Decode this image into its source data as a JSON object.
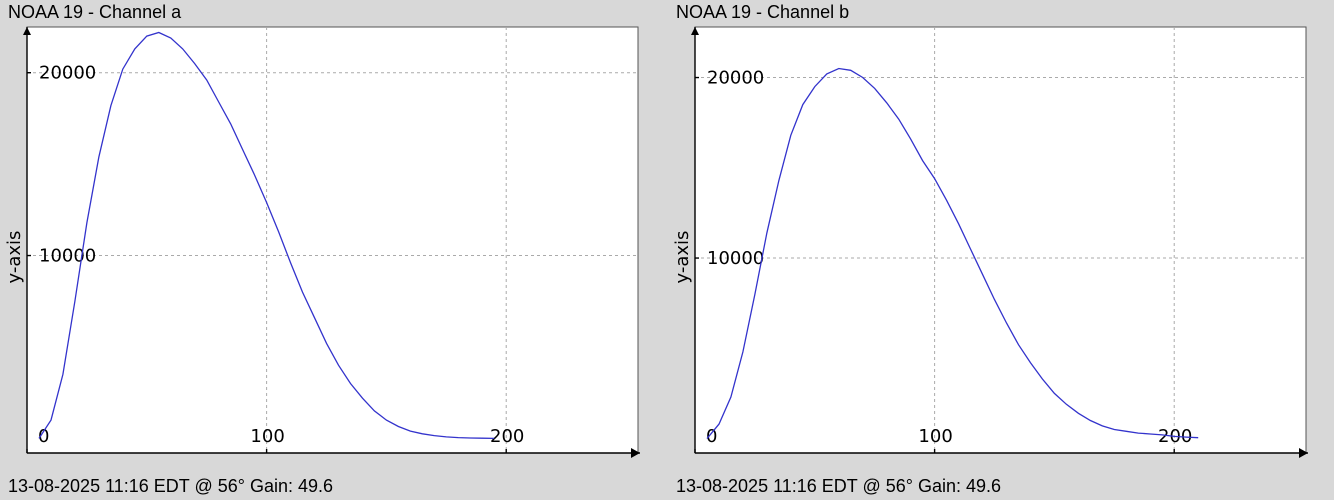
{
  "colors": {
    "background": "#d8d8d8",
    "plot_bg": "#ffffff",
    "series": "#3333cc"
  },
  "panels": [
    {
      "title": "NOAA 19 - Channel a",
      "footer": "13-08-2025 11:16 EDT @ 56° Gain: 49.6"
    },
    {
      "title": "NOAA 19 - Channel b",
      "footer": "13-08-2025 11:16 EDT @ 56° Gain: 49.6"
    }
  ],
  "chart_data": [
    {
      "type": "line",
      "title": "NOAA 19 - Channel a",
      "xlabel": "",
      "ylabel": "y-axis",
      "xlim": [
        0,
        255
      ],
      "ylim": [
        -800,
        22500
      ],
      "xticks": [
        "0",
        "100",
        "200"
      ],
      "xtick_values": [
        0,
        100,
        200
      ],
      "yticks": [
        "10000",
        "20000"
      ],
      "ytick_values": [
        10000,
        20000
      ],
      "grid": true,
      "series": [
        {
          "x": [
            5,
            10,
            15,
            20,
            25,
            30,
            35,
            40,
            45,
            50,
            55,
            60,
            65,
            70,
            75,
            80,
            85,
            90,
            95,
            100,
            105,
            110,
            115,
            120,
            125,
            130,
            135,
            140,
            145,
            150,
            155,
            160,
            165,
            170,
            175,
            180,
            185,
            190,
            195
          ],
          "y": [
            0,
            1000,
            3500,
            7500,
            11800,
            15400,
            18200,
            20200,
            21300,
            22000,
            22200,
            21900,
            21300,
            20500,
            19600,
            18400,
            17200,
            15800,
            14400,
            12900,
            11300,
            9600,
            8000,
            6600,
            5200,
            4000,
            3000,
            2200,
            1500,
            1000,
            650,
            400,
            250,
            150,
            80,
            40,
            20,
            10,
            0
          ]
        }
      ]
    },
    {
      "type": "line",
      "title": "NOAA 19 - Channel b",
      "xlabel": "",
      "ylabel": "y-axis",
      "xlim": [
        0,
        255
      ],
      "ylim": [
        -800,
        22800
      ],
      "xticks": [
        "0",
        "100",
        "200"
      ],
      "xtick_values": [
        0,
        100,
        200
      ],
      "yticks": [
        "10000",
        "20000"
      ],
      "ytick_values": [
        10000,
        20000
      ],
      "grid": true,
      "series": [
        {
          "x": [
            5,
            10,
            15,
            20,
            25,
            30,
            35,
            40,
            45,
            50,
            55,
            60,
            65,
            70,
            75,
            80,
            85,
            90,
            95,
            100,
            105,
            110,
            115,
            120,
            125,
            130,
            135,
            140,
            145,
            150,
            155,
            160,
            165,
            170,
            175,
            180,
            185,
            190,
            195,
            200,
            205,
            210
          ],
          "y": [
            0,
            800,
            2300,
            4800,
            8000,
            11400,
            14300,
            16800,
            18500,
            19500,
            20200,
            20500,
            20400,
            20000,
            19400,
            18600,
            17700,
            16600,
            15400,
            14400,
            13200,
            11900,
            10500,
            9100,
            7700,
            6400,
            5200,
            4200,
            3300,
            2500,
            1900,
            1400,
            1000,
            700,
            500,
            400,
            300,
            250,
            200,
            120,
            80,
            50
          ]
        }
      ]
    }
  ]
}
